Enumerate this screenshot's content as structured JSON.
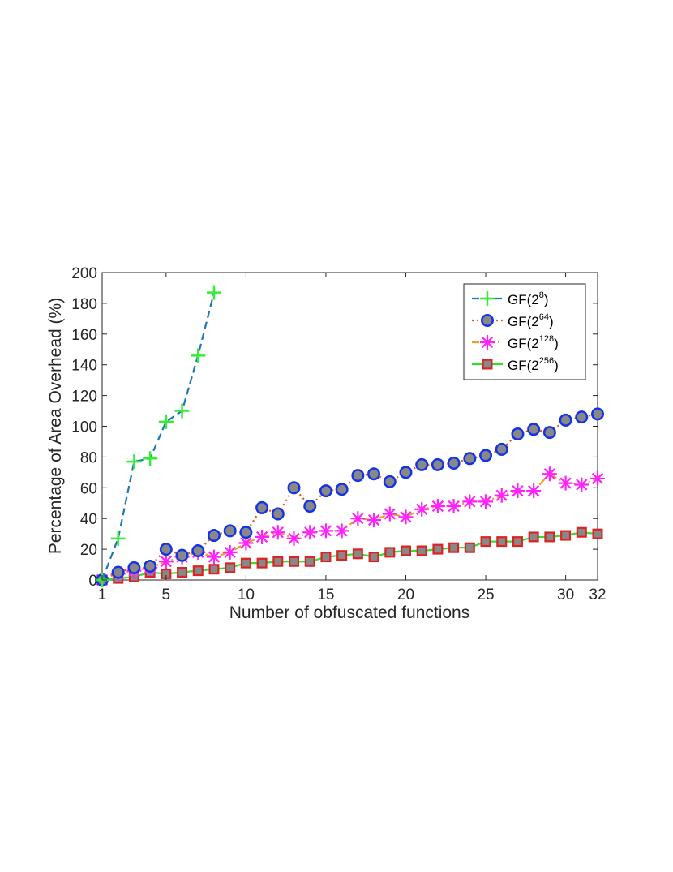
{
  "chart_data": {
    "type": "line",
    "xlabel": "Number of obfuscated functions",
    "ylabel": "Percentage of Area Overhead (%)",
    "xlim": [
      1,
      32
    ],
    "ylim": [
      0,
      200
    ],
    "xticks": [
      1,
      5,
      10,
      15,
      20,
      25,
      30,
      32
    ],
    "yticks": [
      0,
      20,
      40,
      60,
      80,
      100,
      120,
      140,
      160,
      180,
      200
    ],
    "grid": false,
    "legend_position": "top-right",
    "series": [
      {
        "name_base": "GF(2",
        "name_exp": "8",
        "name_tail": ")",
        "line_color": "#1f77b4",
        "line_style": "dashed",
        "marker": "plus",
        "marker_color": "#33ee33",
        "x": [
          1,
          2,
          3,
          4,
          5,
          6,
          7,
          8
        ],
        "y": [
          0,
          27,
          77,
          79,
          103,
          110,
          146,
          187
        ]
      },
      {
        "name_base": "GF(2",
        "name_exp": "64",
        "name_tail": ")",
        "line_color": "#e05a1a",
        "line_style": "dotted",
        "marker": "circle",
        "marker_color": "#888888",
        "marker_edge": "#1533e6",
        "x": [
          1,
          2,
          3,
          4,
          5,
          6,
          7,
          8,
          9,
          10,
          11,
          12,
          13,
          14,
          15,
          16,
          17,
          18,
          19,
          20,
          21,
          22,
          23,
          24,
          25,
          26,
          27,
          28,
          29,
          30,
          31,
          32
        ],
        "y": [
          0,
          5,
          8,
          9,
          20,
          16,
          19,
          29,
          32,
          31,
          47,
          43,
          60,
          48,
          58,
          59,
          68,
          69,
          64,
          70,
          75,
          75,
          76,
          79,
          81,
          85,
          95,
          98,
          96,
          104,
          106,
          108
        ]
      },
      {
        "name_base": "GF(2",
        "name_exp": "128",
        "name_tail": ")",
        "line_color": "#f0a020",
        "line_style": "dashdot",
        "marker": "asterisk",
        "marker_color": "#ff22ff",
        "x": [
          1,
          2,
          3,
          4,
          5,
          6,
          7,
          8,
          9,
          10,
          11,
          12,
          13,
          14,
          15,
          16,
          17,
          18,
          19,
          20,
          21,
          22,
          23,
          24,
          25,
          26,
          27,
          28,
          29,
          30,
          31,
          32
        ],
        "y": [
          0,
          4,
          6,
          8,
          12,
          15,
          18,
          15,
          18,
          24,
          28,
          31,
          27,
          31,
          32,
          32,
          40,
          39,
          43,
          41,
          46,
          48,
          48,
          51,
          51,
          55,
          58,
          58,
          69,
          63,
          62,
          66
        ]
      },
      {
        "name_base": "GF(2",
        "name_exp": "256",
        "name_tail": ")",
        "line_color": "#33dd33",
        "line_style": "solid",
        "marker": "square",
        "marker_color": "#888888",
        "marker_edge": "#dd2222",
        "x": [
          1,
          2,
          3,
          4,
          5,
          6,
          7,
          8,
          9,
          10,
          11,
          12,
          13,
          14,
          15,
          16,
          17,
          18,
          19,
          20,
          21,
          22,
          23,
          24,
          25,
          26,
          27,
          28,
          29,
          30,
          31,
          32
        ],
        "y": [
          0,
          1,
          2,
          5,
          4,
          5,
          6,
          7,
          8,
          11,
          11,
          12,
          12,
          12,
          15,
          16,
          17,
          15,
          18,
          19,
          19,
          20,
          21,
          21,
          25,
          25,
          25,
          28,
          28,
          29,
          31,
          30
        ]
      }
    ]
  }
}
